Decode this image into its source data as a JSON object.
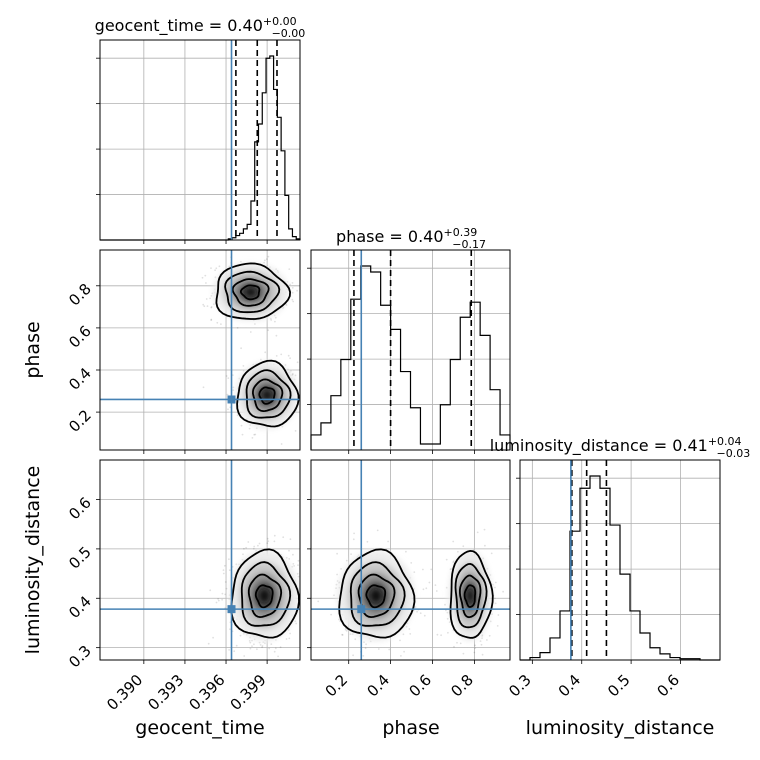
{
  "chart_data": {
    "type": "corner",
    "parameters": [
      "geocent_time",
      "phase",
      "luminosity_distance"
    ],
    "panel_titles": [
      {
        "name": "geocent_time",
        "value": "0.40",
        "plus": "+0.00",
        "minus": "−0.00"
      },
      {
        "name": "phase",
        "value": "0.40",
        "plus": "+0.39",
        "minus": "−0.17"
      },
      {
        "name": "luminosity_distance",
        "value": "0.41",
        "plus": "+0.04",
        "minus": "−0.03"
      }
    ],
    "ranges": {
      "geocent_time": [
        0.3868,
        0.4014
      ],
      "phase": [
        0.02,
        0.97
      ],
      "luminosity_distance": [
        0.275,
        0.68
      ]
    },
    "truths": {
      "geocent_time": 0.3964,
      "phase": 0.26,
      "luminosity_distance": 0.378
    },
    "quantiles": {
      "geocent_time": [
        0.39672,
        0.39828,
        0.39972
      ],
      "phase": [
        0.225,
        0.4,
        0.785
      ],
      "luminosity_distance": [
        0.38,
        0.41,
        0.45
      ]
    },
    "ticks": {
      "geocent_time": {
        "values": [
          0.39,
          0.393,
          0.396,
          0.399
        ],
        "labels": [
          "0.390",
          "0.393",
          "0.396",
          "0.399"
        ]
      },
      "phase": {
        "values": [
          0.2,
          0.4,
          0.6,
          0.8
        ],
        "labels": [
          "0.2",
          "0.4",
          "0.6",
          "0.8"
        ]
      },
      "luminosity_distance": {
        "values": [
          0.3,
          0.4,
          0.5,
          0.6
        ],
        "labels": [
          "0.3",
          "0.4",
          "0.5",
          "0.6"
        ]
      }
    },
    "histograms": {
      "geocent_time": [
        0,
        0,
        0,
        0,
        0,
        0,
        0,
        0,
        0,
        0,
        0,
        0,
        0,
        0,
        0,
        0,
        0,
        0,
        0,
        0,
        0,
        0,
        0,
        0,
        0,
        0,
        0,
        0,
        0,
        0,
        0,
        0,
        0,
        0,
        1,
        2,
        4,
        6,
        10,
        14,
        35,
        88,
        104,
        132,
        163,
        165,
        135,
        110,
        80,
        40,
        10,
        3,
        1
      ],
      "phase": [
        10,
        18,
        36,
        60,
        100,
        122,
        118,
        96,
        80,
        52,
        28,
        4,
        4,
        30,
        60,
        88,
        98,
        76,
        40,
        10
      ],
      "luminosity_distance": [
        0,
        2,
        6,
        18,
        40,
        105,
        140,
        150,
        140,
        110,
        70,
        40,
        22,
        10,
        5,
        2,
        1,
        1,
        0,
        0
      ]
    },
    "grid": true
  }
}
